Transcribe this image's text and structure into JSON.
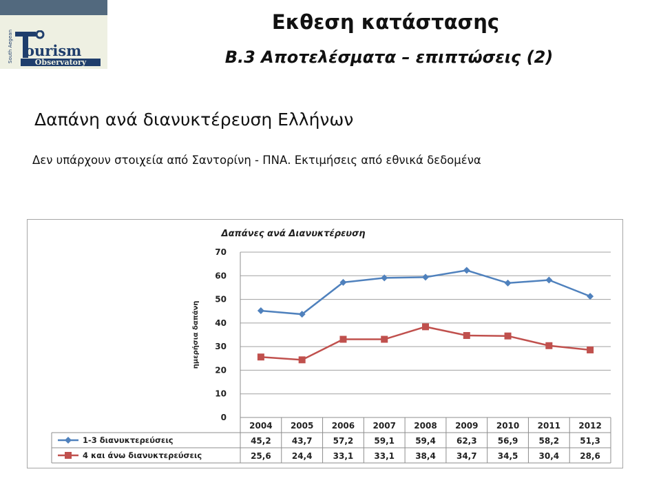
{
  "logo": {
    "side_text": "South Aegean",
    "word1": "ourism",
    "word2": "Observatory",
    "navy": "#1f3e6c",
    "accent": "#52697e"
  },
  "header": {
    "title": "Εκθεση κατάστασης",
    "subtitle": "Β.3 Αποτελέσματα – επιπτώσεις  (2)"
  },
  "main": {
    "heading": "Δαπάνη ανά διανυκτέρευση Ελλήνων",
    "note": "Δεν υπάρχουν στοιχεία από Σαντορίνη - ΠΝΑ. Εκτιμήσεις από εθνικά δεδομένα"
  },
  "chart_data": {
    "type": "line",
    "title": "Δαπάνες ανά Διανυκτέρευση",
    "ylabel": "ημερήσια δαπάνη",
    "xlabel": "",
    "ylim": [
      0,
      70
    ],
    "yticks": [
      0,
      10,
      20,
      30,
      40,
      50,
      60,
      70
    ],
    "grid": true,
    "legend": "data-table-left",
    "categories": [
      "2004",
      "2005",
      "2006",
      "2007",
      "2008",
      "2009",
      "2010",
      "2011",
      "2012"
    ],
    "series": [
      {
        "name": "1-3 διανυκτερεύσεις",
        "color": "#4f81bd",
        "marker": "diamond",
        "values": [
          45.2,
          43.7,
          57.2,
          59.1,
          59.4,
          62.3,
          56.9,
          58.2,
          51.3
        ],
        "labels": [
          "45,2",
          "43,7",
          "57,2",
          "59,1",
          "59,4",
          "62,3",
          "56,9",
          "58,2",
          "51,3"
        ]
      },
      {
        "name": "4 και άνω διανυκτερεύσεις",
        "color": "#c0504d",
        "marker": "square",
        "values": [
          25.6,
          24.4,
          33.1,
          33.1,
          38.4,
          34.7,
          34.5,
          30.4,
          28.6
        ],
        "labels": [
          "25,6",
          "24,4",
          "33,1",
          "33,1",
          "38,4",
          "34,7",
          "34,5",
          "30,4",
          "28,6"
        ]
      }
    ]
  }
}
